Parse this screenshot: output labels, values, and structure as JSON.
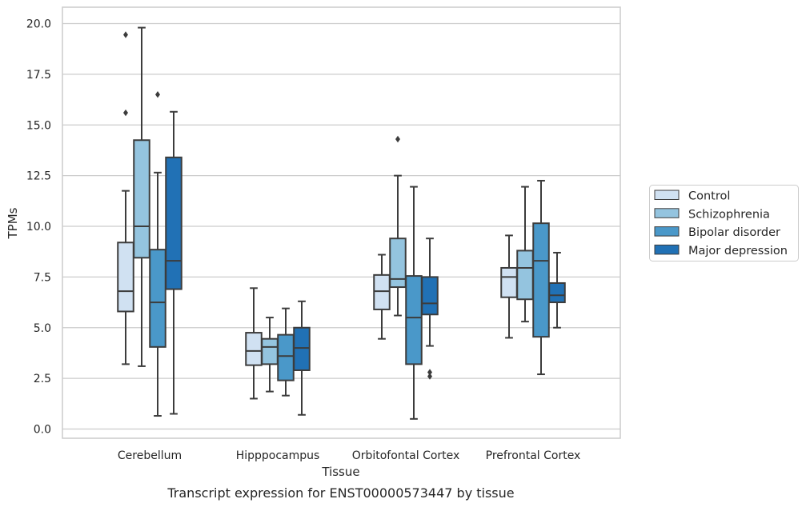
{
  "chart_data": {
    "type": "box",
    "xlabel": "Tissue",
    "ylabel": "TPMs",
    "caption": "Transcript expression for ENST00000573447 by tissue",
    "ylim": [
      -0.45,
      20.8
    ],
    "yticks": [
      0.0,
      2.5,
      5.0,
      7.5,
      10.0,
      12.5,
      15.0,
      17.5,
      20.0
    ],
    "ytick_labels": [
      "0.0",
      "2.5",
      "5.0",
      "7.5",
      "10.0",
      "12.5",
      "15.0",
      "17.5",
      "20.0"
    ],
    "grid": "horizontal",
    "legend_position": "right",
    "categories": [
      "Cerebellum",
      "Hipppocampus",
      "Orbitofontal Cortex",
      "Prefrontal Cortex"
    ],
    "series": [
      {
        "name": "Control",
        "color": "#d0e1f2",
        "boxes": [
          {
            "whisker_low": 3.2,
            "q1": 5.8,
            "median": 6.8,
            "q3": 9.2,
            "whisker_high": 11.75,
            "outliers": []
          },
          {
            "whisker_low": 1.5,
            "q1": 3.15,
            "median": 3.85,
            "q3": 4.75,
            "whisker_high": 6.95,
            "outliers": []
          },
          {
            "whisker_low": 4.45,
            "q1": 5.9,
            "median": 6.8,
            "q3": 7.6,
            "whisker_high": 8.6,
            "outliers": []
          },
          {
            "whisker_low": 4.5,
            "q1": 6.5,
            "median": 7.5,
            "q3": 7.95,
            "whisker_high": 9.55,
            "outliers": []
          }
        ]
      },
      {
        "name": "Schizophrenia",
        "color": "#94c4df",
        "boxes": [
          {
            "whisker_low": 3.1,
            "q1": 8.45,
            "median": 10.0,
            "q3": 14.25,
            "whisker_high": 19.8,
            "outliers": []
          },
          {
            "whisker_low": 1.85,
            "q1": 3.2,
            "median": 4.05,
            "q3": 4.45,
            "whisker_high": 5.5,
            "outliers": []
          },
          {
            "whisker_low": 5.6,
            "q1": 7.0,
            "median": 7.4,
            "q3": 9.4,
            "whisker_high": 12.5,
            "outliers": [
              14.3
            ]
          },
          {
            "whisker_low": 5.3,
            "q1": 6.4,
            "median": 7.95,
            "q3": 8.8,
            "whisker_high": 11.95,
            "outliers": []
          }
        ]
      },
      {
        "name": "Bipolar disorder",
        "color": "#4a98c9",
        "boxes": [
          {
            "whisker_low": 0.65,
            "q1": 4.05,
            "median": 6.25,
            "q3": 8.85,
            "whisker_high": 12.65,
            "outliers": []
          },
          {
            "whisker_low": 1.65,
            "q1": 2.4,
            "median": 3.6,
            "q3": 4.65,
            "whisker_high": 5.95,
            "outliers": []
          },
          {
            "whisker_low": 0.5,
            "q1": 3.2,
            "median": 5.5,
            "q3": 7.55,
            "whisker_high": 11.95,
            "outliers": []
          },
          {
            "whisker_low": 2.7,
            "q1": 4.55,
            "median": 8.3,
            "q3": 10.15,
            "whisker_high": 12.25,
            "outliers": []
          }
        ]
      },
      {
        "name": "Major depression",
        "color": "#2171b5",
        "boxes": [
          {
            "whisker_low": 0.75,
            "q1": 6.9,
            "median": 8.3,
            "q3": 13.4,
            "whisker_high": 15.65,
            "outliers": []
          },
          {
            "whisker_low": 0.7,
            "q1": 2.9,
            "median": 4.0,
            "q3": 5.0,
            "whisker_high": 6.3,
            "outliers": []
          },
          {
            "whisker_low": 4.1,
            "q1": 5.65,
            "median": 6.2,
            "q3": 7.5,
            "whisker_high": 9.4,
            "outliers": [
              2.6,
              2.8
            ]
          },
          {
            "whisker_low": 5.0,
            "q1": 6.25,
            "median": 6.6,
            "q3": 7.2,
            "whisker_high": 8.7,
            "outliers": []
          }
        ]
      }
    ],
    "extra_outliers": [
      {
        "category": "Cerebellum",
        "series": "Control",
        "values": [
          19.45,
          15.6
        ]
      },
      {
        "category": "Cerebellum",
        "series": "Bipolar disorder",
        "values": [
          16.5
        ]
      }
    ]
  }
}
